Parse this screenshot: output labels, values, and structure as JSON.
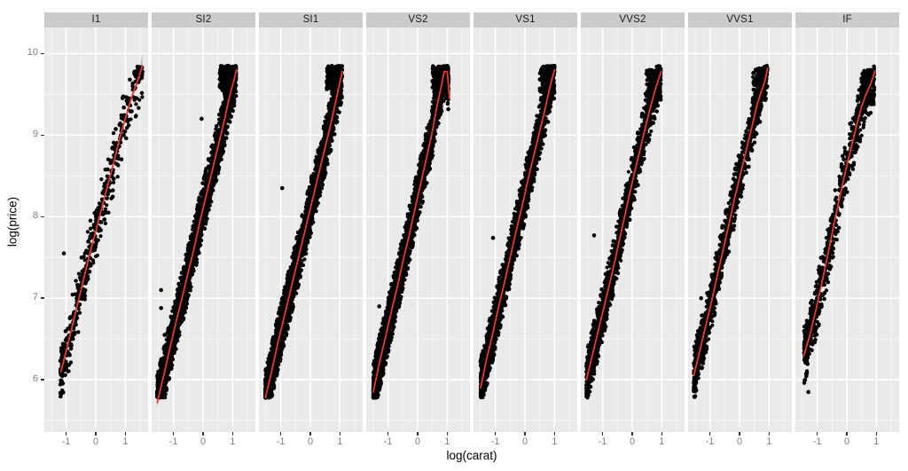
{
  "chart_data": {
    "type": "scatter",
    "title": "",
    "xlabel": "log(carat)",
    "ylabel": "log(price)",
    "facet_variable": "clarity",
    "legend": "none",
    "grid": true,
    "x_domain": [
      -1.74,
      1.77
    ],
    "y_domain": [
      5.36,
      10.32
    ],
    "x_ticks": [
      -1,
      0,
      1
    ],
    "y_ticks": [
      10,
      9,
      8,
      7,
      6
    ],
    "x_grid_minor": [
      -1.5,
      -0.5,
      0.5,
      1.5
    ],
    "y_grid_minor": [
      5.5,
      6.5,
      7.5,
      8.5,
      9.5
    ],
    "style": {
      "panel_bg": "#eaeaea",
      "strip_bg": "#cbcbcb",
      "strip_text_color": "#1a1a1a",
      "grid_major": "#ffffff",
      "grid_minor": "#f5f5f5",
      "point_color": "#000000",
      "smoother_color": "#e8392c",
      "ribbon_color": "rgba(110,110,110,0.35)",
      "axis_text_color": "#7f7f7f",
      "tick_mark_color": "#333333",
      "axis_title_color": "#000000"
    },
    "facets": [
      {
        "label": "I1",
        "n_points": 500,
        "x_range": [
          -1.2,
          1.58
        ],
        "y_noise_sd": 0.17,
        "smoother": [
          [
            -1.18,
            6.1
          ],
          [
            -1.0,
            6.35
          ],
          [
            -0.8,
            6.65
          ],
          [
            -0.6,
            6.95
          ],
          [
            -0.4,
            7.25
          ],
          [
            -0.2,
            7.55
          ],
          [
            0,
            7.82
          ],
          [
            0.2,
            8.1
          ],
          [
            0.4,
            8.38
          ],
          [
            0.6,
            8.65
          ],
          [
            0.8,
            8.95
          ],
          [
            1.0,
            9.2
          ],
          [
            1.2,
            9.45
          ],
          [
            1.4,
            9.65
          ],
          [
            1.58,
            9.85
          ]
        ],
        "top_cluster": null,
        "outliers": [
          [
            -1.08,
            7.55
          ]
        ],
        "ci_halfwidth_start": 0.06,
        "ci_halfwidth_end": 0.14
      },
      {
        "label": "SI2",
        "n_points": 2600,
        "x_range": [
          -1.55,
          1.12
        ],
        "y_noise_sd": 0.15,
        "smoother": [
          [
            -1.55,
            5.72
          ],
          [
            -1.3,
            6.1
          ],
          [
            -1.1,
            6.42
          ],
          [
            -0.9,
            6.73
          ],
          [
            -0.7,
            7.02
          ],
          [
            -0.5,
            7.32
          ],
          [
            -0.3,
            7.62
          ],
          [
            -0.1,
            7.95
          ],
          [
            0.1,
            8.25
          ],
          [
            0.3,
            8.55
          ],
          [
            0.5,
            8.85
          ],
          [
            0.7,
            9.15
          ],
          [
            0.85,
            9.4
          ],
          [
            0.95,
            9.55
          ],
          [
            1.05,
            9.68
          ],
          [
            1.13,
            9.8
          ]
        ],
        "top_cluster": {
          "n": 200,
          "x": [
            0.55,
            1.1
          ],
          "y": [
            9.55,
            9.85
          ]
        },
        "outliers": [
          [
            -1.42,
            7.1
          ],
          [
            -1.42,
            6.88
          ],
          [
            -0.05,
            9.2
          ],
          [
            -1.3,
            6.55
          ]
        ],
        "ci_halfwidth_start": 0.06,
        "ci_halfwidth_end": 0.05
      },
      {
        "label": "SI1",
        "n_points": 3100,
        "x_range": [
          -1.52,
          1.08
        ],
        "y_noise_sd": 0.15,
        "smoother": [
          [
            -1.52,
            5.78
          ],
          [
            -1.3,
            6.12
          ],
          [
            -1.1,
            6.45
          ],
          [
            -0.9,
            6.75
          ],
          [
            -0.7,
            7.05
          ],
          [
            -0.5,
            7.35
          ],
          [
            -0.3,
            7.65
          ],
          [
            -0.1,
            7.95
          ],
          [
            0.1,
            8.25
          ],
          [
            0.3,
            8.55
          ],
          [
            0.5,
            8.85
          ],
          [
            0.7,
            9.15
          ],
          [
            0.85,
            9.4
          ],
          [
            1.0,
            9.65
          ],
          [
            1.08,
            9.78
          ]
        ],
        "top_cluster": {
          "n": 160,
          "x": [
            0.55,
            1.05
          ],
          "y": [
            9.55,
            9.85
          ]
        },
        "outliers": [
          [
            -0.95,
            8.35
          ]
        ],
        "ci_halfwidth_start": 0.05,
        "ci_halfwidth_end": 0.05
      },
      {
        "label": "VS2",
        "n_points": 2950,
        "x_range": [
          -1.5,
          1.05
        ],
        "y_noise_sd": 0.15,
        "smoother": [
          [
            -1.5,
            5.85
          ],
          [
            -1.3,
            6.2
          ],
          [
            -1.1,
            6.5
          ],
          [
            -0.9,
            6.82
          ],
          [
            -0.7,
            7.12
          ],
          [
            -0.5,
            7.45
          ],
          [
            -0.3,
            7.75
          ],
          [
            -0.1,
            8.08
          ],
          [
            0.1,
            8.4
          ],
          [
            0.3,
            8.72
          ],
          [
            0.5,
            9.05
          ],
          [
            0.65,
            9.35
          ],
          [
            0.8,
            9.6
          ],
          [
            0.9,
            9.78
          ],
          [
            1.0,
            9.78
          ],
          [
            1.08,
            9.45
          ]
        ],
        "top_cluster": {
          "n": 210,
          "x": [
            0.5,
            1.02
          ],
          "y": [
            9.5,
            9.85
          ]
        },
        "outliers": [
          [
            1.03,
            9.82
          ],
          [
            -1.3,
            6.9
          ]
        ],
        "ci_halfwidth_start": 0.05,
        "ci_halfwidth_end": 0.22
      },
      {
        "label": "VS1",
        "n_points": 2250,
        "x_range": [
          -1.5,
          1.0
        ],
        "y_noise_sd": 0.15,
        "smoother": [
          [
            -1.5,
            5.9
          ],
          [
            -1.3,
            6.25
          ],
          [
            -1.1,
            6.55
          ],
          [
            -0.9,
            6.88
          ],
          [
            -0.7,
            7.18
          ],
          [
            -0.5,
            7.5
          ],
          [
            -0.3,
            7.82
          ],
          [
            -0.1,
            8.12
          ],
          [
            0.1,
            8.45
          ],
          [
            0.3,
            8.75
          ],
          [
            0.5,
            9.05
          ],
          [
            0.7,
            9.35
          ],
          [
            0.85,
            9.6
          ],
          [
            1.0,
            9.8
          ]
        ],
        "top_cluster": {
          "n": 150,
          "x": [
            0.5,
            1.0
          ],
          "y": [
            9.5,
            9.85
          ]
        },
        "outliers": [
          [
            -1.08,
            7.74
          ]
        ],
        "ci_halfwidth_start": 0.05,
        "ci_halfwidth_end": 0.06
      },
      {
        "label": "VVS2",
        "n_points": 1500,
        "x_range": [
          -1.55,
          0.97
        ],
        "y_noise_sd": 0.15,
        "smoother": [
          [
            -1.55,
            6.0
          ],
          [
            -1.35,
            6.3
          ],
          [
            -1.15,
            6.6
          ],
          [
            -0.95,
            6.9
          ],
          [
            -0.75,
            7.2
          ],
          [
            -0.55,
            7.52
          ],
          [
            -0.35,
            7.85
          ],
          [
            -0.15,
            8.18
          ],
          [
            0.05,
            8.5
          ],
          [
            0.25,
            8.8
          ],
          [
            0.45,
            9.1
          ],
          [
            0.6,
            9.32
          ],
          [
            0.75,
            9.52
          ],
          [
            0.9,
            9.7
          ],
          [
            0.98,
            9.78
          ]
        ],
        "top_cluster": {
          "n": 90,
          "x": [
            0.45,
            0.95
          ],
          "y": [
            9.45,
            9.8
          ]
        },
        "outliers": [
          [
            -1.29,
            7.77
          ],
          [
            -1.35,
            6.4
          ]
        ],
        "ci_halfwidth_start": 0.05,
        "ci_halfwidth_end": 0.07
      },
      {
        "label": "VVS1",
        "n_points": 1150,
        "x_range": [
          -1.55,
          0.95
        ],
        "y_noise_sd": 0.15,
        "smoother": [
          [
            -1.55,
            6.05
          ],
          [
            -1.35,
            6.35
          ],
          [
            -1.15,
            6.65
          ],
          [
            -0.95,
            6.95
          ],
          [
            -0.75,
            7.28
          ],
          [
            -0.55,
            7.6
          ],
          [
            -0.35,
            7.92
          ],
          [
            -0.15,
            8.25
          ],
          [
            0.05,
            8.55
          ],
          [
            0.25,
            8.85
          ],
          [
            0.45,
            9.15
          ],
          [
            0.6,
            9.38
          ],
          [
            0.75,
            9.55
          ],
          [
            0.85,
            9.65
          ],
          [
            0.95,
            9.82
          ]
        ],
        "top_cluster": {
          "n": 80,
          "x": [
            0.45,
            0.92
          ],
          "y": [
            9.45,
            9.82
          ]
        },
        "outliers": [
          [
            -1.3,
            7.0
          ]
        ],
        "ci_halfwidth_start": 0.05,
        "ci_halfwidth_end": 0.12
      },
      {
        "label": "IF",
        "n_points": 730,
        "x_range": [
          -1.45,
          0.93
        ],
        "y_noise_sd": 0.16,
        "smoother": [
          [
            -1.45,
            6.3
          ],
          [
            -1.25,
            6.55
          ],
          [
            -1.05,
            6.85
          ],
          [
            -0.85,
            7.18
          ],
          [
            -0.65,
            7.52
          ],
          [
            -0.45,
            7.88
          ],
          [
            -0.25,
            8.22
          ],
          [
            -0.05,
            8.55
          ],
          [
            0.15,
            8.85
          ],
          [
            0.35,
            9.15
          ],
          [
            0.5,
            9.35
          ],
          [
            0.65,
            9.5
          ],
          [
            0.8,
            9.62
          ],
          [
            0.95,
            9.78
          ]
        ],
        "top_cluster": {
          "n": 170,
          "x": [
            0.5,
            0.93
          ],
          "y": [
            9.35,
            9.8
          ]
        },
        "outliers": [
          [
            -1.3,
            5.85
          ]
        ],
        "ci_halfwidth_start": 0.06,
        "ci_halfwidth_end": 0.12
      }
    ]
  }
}
